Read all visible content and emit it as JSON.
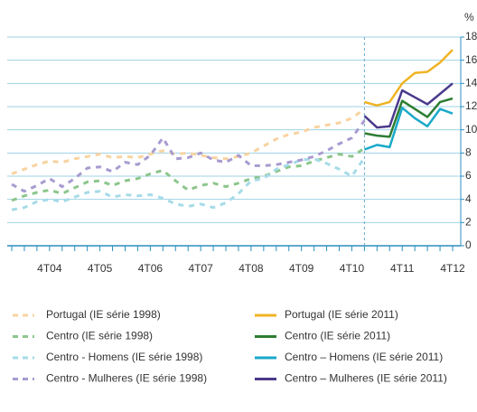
{
  "chart_data": {
    "type": "line",
    "y_label": "%",
    "categories": [
      null,
      null,
      null,
      "4T04",
      null,
      null,
      null,
      "4T05",
      null,
      null,
      null,
      "4T06",
      null,
      null,
      null,
      "4T07",
      null,
      null,
      null,
      "4T08",
      null,
      null,
      null,
      "4T09",
      null,
      null,
      null,
      "4T10",
      null,
      null,
      null,
      "4T11",
      null,
      null,
      null,
      "4T12"
    ],
    "ylim": [
      0,
      18
    ],
    "yticks": [
      0,
      2,
      4,
      6,
      8,
      10,
      12,
      14,
      16,
      18
    ],
    "grid": true,
    "series": [
      {
        "name": "Portugal (IE série 1998)",
        "color": "#f8d3a0",
        "dashed": true,
        "values": [
          6.2,
          6.6,
          7.0,
          7.3,
          7.2,
          7.5,
          7.7,
          7.9,
          7.6,
          7.7,
          7.6,
          7.9,
          8.2,
          7.9,
          8.0,
          7.8,
          7.6,
          7.5,
          7.7,
          8.0,
          8.6,
          9.2,
          9.6,
          9.8,
          10.2,
          10.4,
          10.6,
          11.0,
          11.8,
          null,
          null,
          null,
          null,
          null,
          null,
          null
        ]
      },
      {
        "name": "Centro (IE série 1998)",
        "color": "#8cc68c",
        "dashed": true,
        "values": [
          3.9,
          4.3,
          4.6,
          4.8,
          4.5,
          5.0,
          5.5,
          5.6,
          5.2,
          5.6,
          5.8,
          6.2,
          6.5,
          5.6,
          4.8,
          5.2,
          5.4,
          5.1,
          5.4,
          5.8,
          6.0,
          6.4,
          6.8,
          6.9,
          7.3,
          7.6,
          7.9,
          7.7,
          8.4,
          null,
          null,
          null,
          null,
          null,
          null,
          null
        ]
      },
      {
        "name": "Centro - Homens (IE série 1998)",
        "color": "#a6dbe8",
        "dashed": true,
        "values": [
          3.1,
          3.3,
          3.8,
          4.0,
          3.8,
          4.2,
          4.6,
          4.7,
          4.2,
          4.4,
          4.3,
          4.4,
          4.1,
          3.6,
          3.4,
          3.6,
          3.3,
          3.7,
          4.5,
          5.6,
          5.8,
          6.6,
          7.0,
          7.4,
          7.5,
          7.1,
          6.6,
          6.0,
          7.6,
          null,
          null,
          null,
          null,
          null,
          null,
          null
        ]
      },
      {
        "name": "Centro - Mulheres (IE série 1998)",
        "color": "#a89bd0",
        "dashed": true,
        "values": [
          5.3,
          4.7,
          5.2,
          5.8,
          5.1,
          5.8,
          6.7,
          6.8,
          6.4,
          7.2,
          7.0,
          7.8,
          9.3,
          7.5,
          7.6,
          8.0,
          7.4,
          7.2,
          7.8,
          6.9,
          6.9,
          7.0,
          7.2,
          7.4,
          7.7,
          8.2,
          8.8,
          9.3,
          10.8,
          null,
          null,
          null,
          null,
          null,
          null,
          null
        ]
      },
      {
        "name": "Portugal (IE série 2011)",
        "color": "#f0b323",
        "dashed": false,
        "values": [
          null,
          null,
          null,
          null,
          null,
          null,
          null,
          null,
          null,
          null,
          null,
          null,
          null,
          null,
          null,
          null,
          null,
          null,
          null,
          null,
          null,
          null,
          null,
          null,
          null,
          null,
          null,
          null,
          12.4,
          12.1,
          12.4,
          14.0,
          14.9,
          15.0,
          15.8,
          16.9
        ]
      },
      {
        "name": "Centro (IE série 2011)",
        "color": "#2e7d32",
        "dashed": false,
        "values": [
          null,
          null,
          null,
          null,
          null,
          null,
          null,
          null,
          null,
          null,
          null,
          null,
          null,
          null,
          null,
          null,
          null,
          null,
          null,
          null,
          null,
          null,
          null,
          null,
          null,
          null,
          null,
          null,
          9.7,
          9.5,
          9.4,
          12.5,
          11.8,
          11.1,
          12.4,
          12.7
        ]
      },
      {
        "name": "Centro – Homens (IE série 2011)",
        "color": "#1aa9c9",
        "dashed": false,
        "values": [
          null,
          null,
          null,
          null,
          null,
          null,
          null,
          null,
          null,
          null,
          null,
          null,
          null,
          null,
          null,
          null,
          null,
          null,
          null,
          null,
          null,
          null,
          null,
          null,
          null,
          null,
          null,
          null,
          8.3,
          8.7,
          8.5,
          11.9,
          11.0,
          10.3,
          11.8,
          11.4
        ]
      },
      {
        "name": "Centro – Mulheres (IE série 2011)",
        "color": "#4b3a8c",
        "dashed": false,
        "values": [
          null,
          null,
          null,
          null,
          null,
          null,
          null,
          null,
          null,
          null,
          null,
          null,
          null,
          null,
          null,
          null,
          null,
          null,
          null,
          null,
          null,
          null,
          null,
          null,
          null,
          null,
          null,
          null,
          11.2,
          10.2,
          10.3,
          13.4,
          12.8,
          12.2,
          13.1,
          14.0
        ]
      }
    ]
  }
}
